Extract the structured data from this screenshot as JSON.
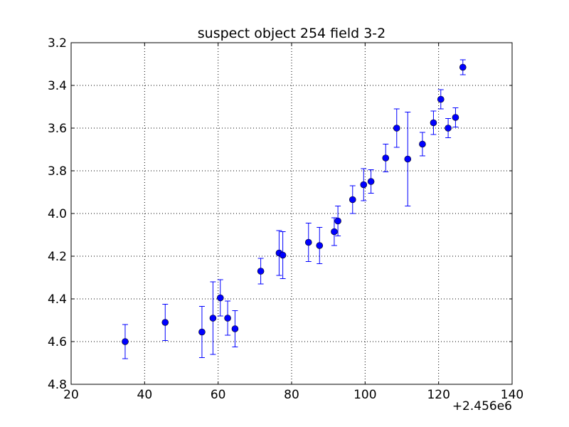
{
  "chart_data": {
    "type": "scatter",
    "title": "suspect object 254 field 3-2",
    "xlabel": "",
    "ylabel": "",
    "x_offset_label": "+2.456e6",
    "xlim": [
      20,
      140
    ],
    "ylim": [
      4.8,
      3.2
    ],
    "y_inverted": true,
    "xticks": [
      "20",
      "40",
      "60",
      "80",
      "100",
      "120",
      "140"
    ],
    "yticks": [
      "3.2",
      "3.4",
      "3.6",
      "3.8",
      "4.0",
      "4.2",
      "4.4",
      "4.6",
      "4.8"
    ],
    "grid": true,
    "marker_color": "#0000ff",
    "series": [
      {
        "points": [
          {
            "x": 34.7,
            "y": 4.6,
            "err": 0.08
          },
          {
            "x": 45.6,
            "y": 4.51,
            "err": 0.085
          },
          {
            "x": 55.6,
            "y": 4.555,
            "err": 0.12
          },
          {
            "x": 58.6,
            "y": 4.49,
            "err": 0.17
          },
          {
            "x": 60.6,
            "y": 4.395,
            "err": 0.085
          },
          {
            "x": 62.6,
            "y": 4.49,
            "err": 0.08
          },
          {
            "x": 64.6,
            "y": 4.54,
            "err": 0.085
          },
          {
            "x": 71.6,
            "y": 4.27,
            "err": 0.06
          },
          {
            "x": 76.6,
            "y": 4.185,
            "err": 0.105
          },
          {
            "x": 77.6,
            "y": 4.195,
            "err": 0.11
          },
          {
            "x": 84.6,
            "y": 4.135,
            "err": 0.09
          },
          {
            "x": 87.6,
            "y": 4.15,
            "err": 0.085
          },
          {
            "x": 91.6,
            "y": 4.085,
            "err": 0.065
          },
          {
            "x": 92.6,
            "y": 4.035,
            "err": 0.07
          },
          {
            "x": 96.6,
            "y": 3.935,
            "err": 0.065
          },
          {
            "x": 99.6,
            "y": 3.865,
            "err": 0.075
          },
          {
            "x": 101.6,
            "y": 3.85,
            "err": 0.055
          },
          {
            "x": 105.6,
            "y": 3.74,
            "err": 0.065
          },
          {
            "x": 108.6,
            "y": 3.6,
            "err": 0.09
          },
          {
            "x": 111.6,
            "y": 3.745,
            "err": 0.22
          },
          {
            "x": 115.6,
            "y": 3.675,
            "err": 0.055
          },
          {
            "x": 118.6,
            "y": 3.575,
            "err": 0.055
          },
          {
            "x": 120.6,
            "y": 3.465,
            "err": 0.045
          },
          {
            "x": 122.6,
            "y": 3.6,
            "err": 0.045
          },
          {
            "x": 124.6,
            "y": 3.55,
            "err": 0.045
          },
          {
            "x": 126.6,
            "y": 3.315,
            "err": 0.035
          }
        ]
      }
    ]
  }
}
